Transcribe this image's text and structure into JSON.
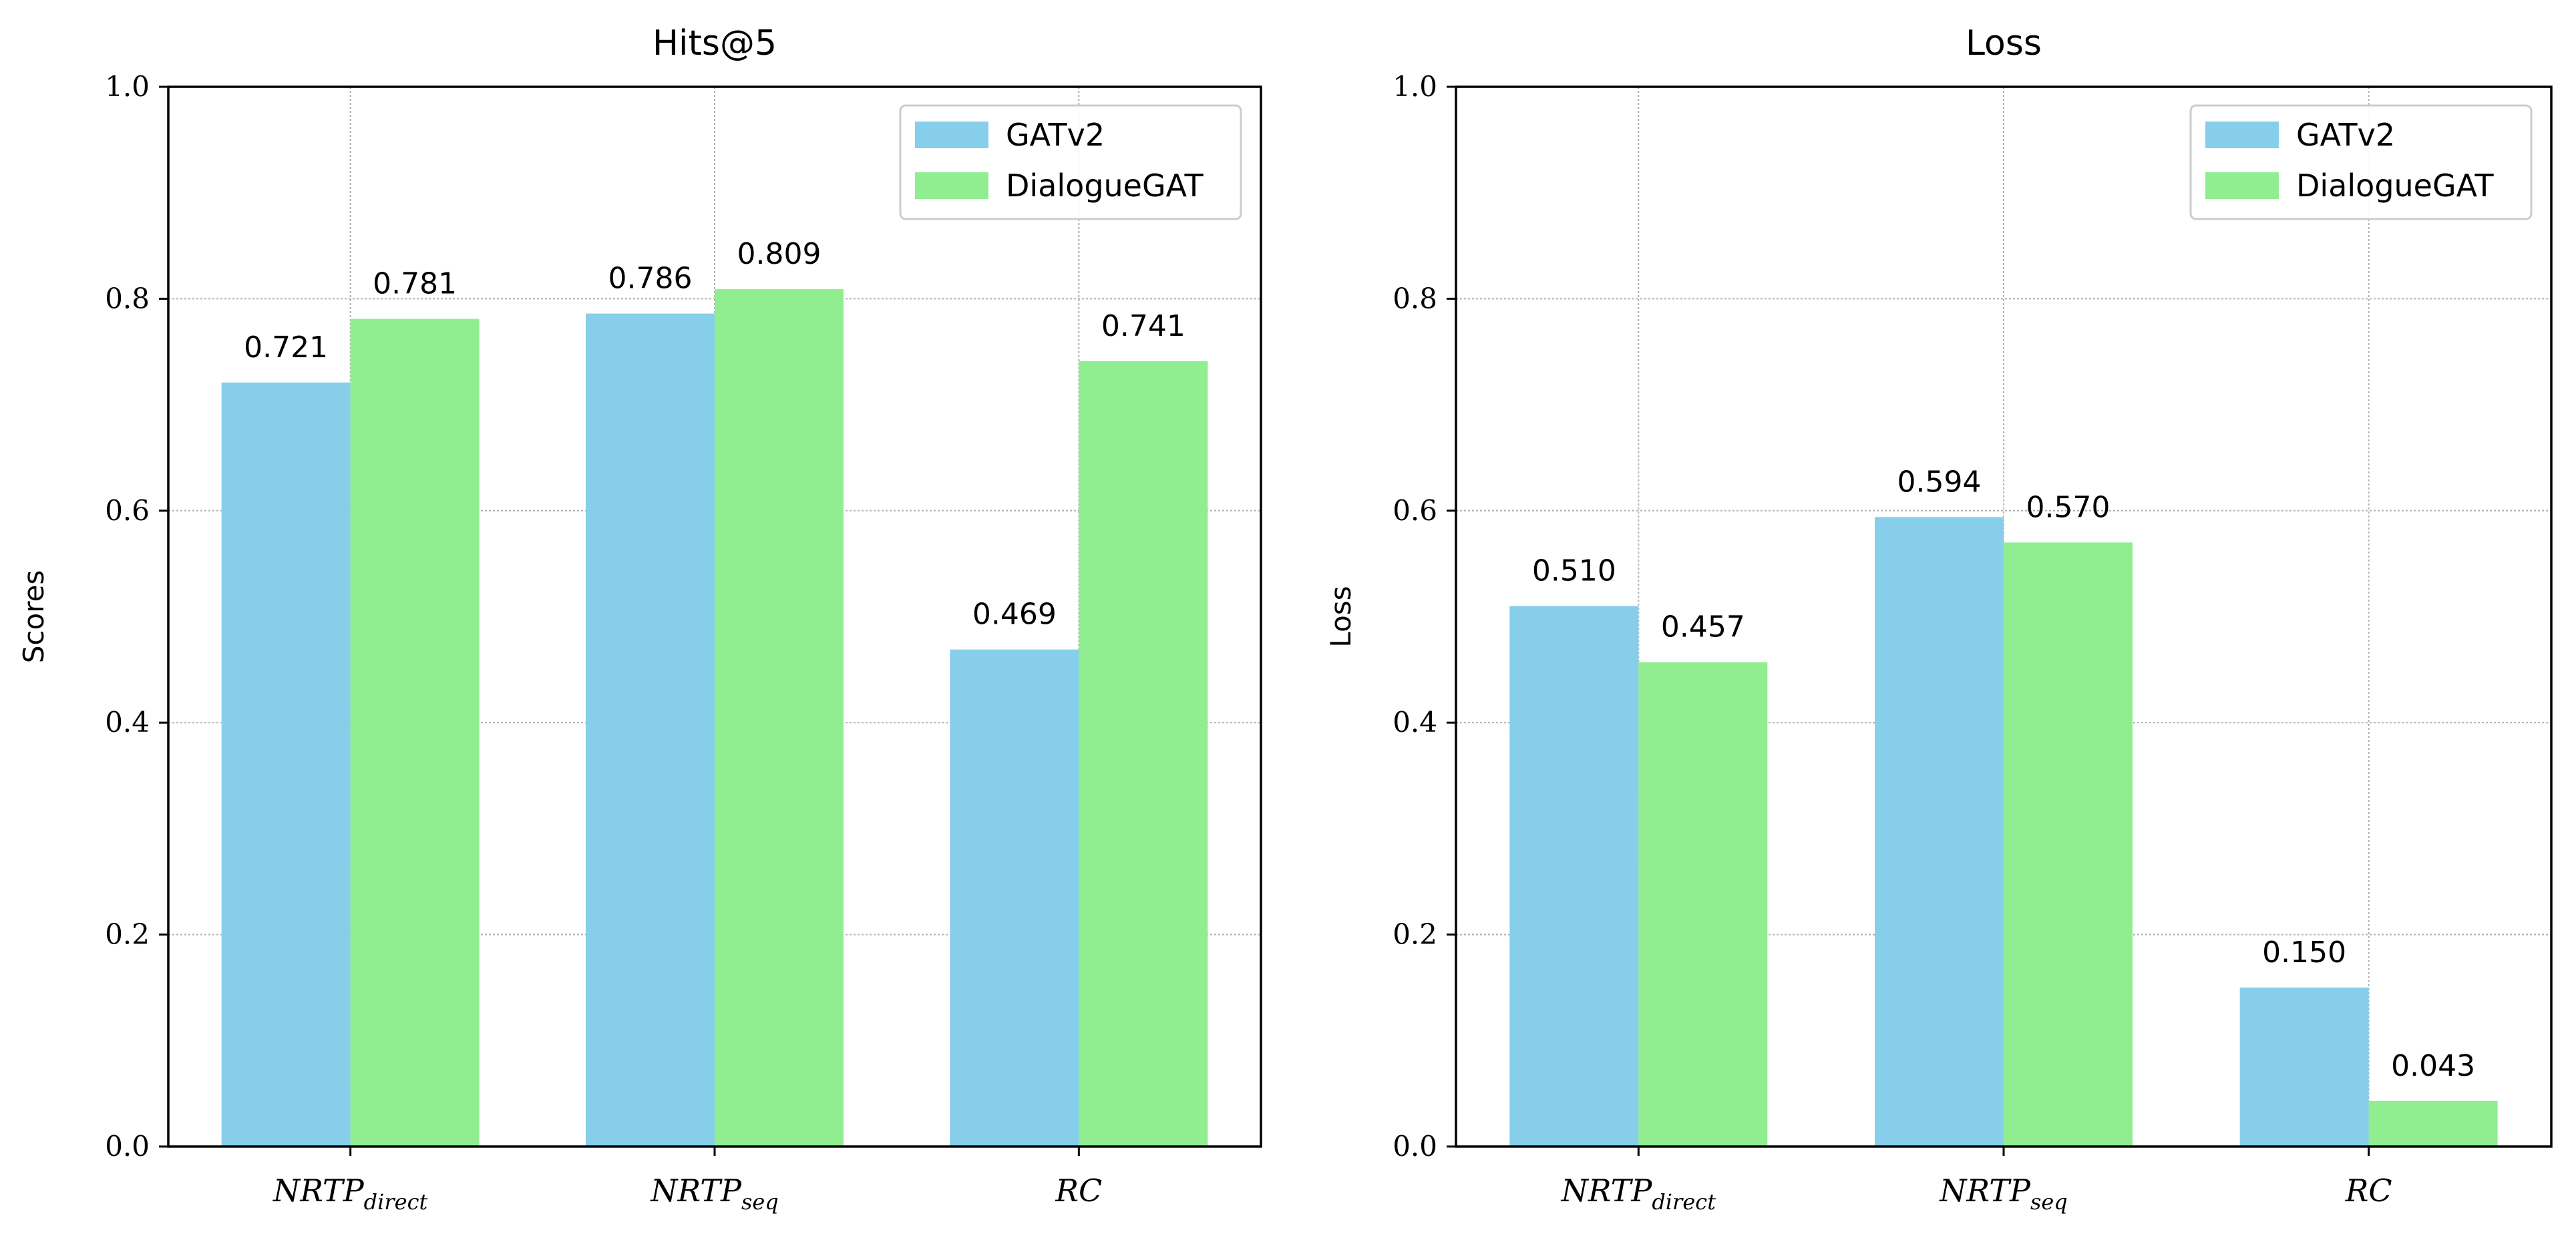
{
  "chart_data": [
    {
      "type": "bar",
      "title": "Hits@5",
      "ylabel": "Scores",
      "xlabel": "",
      "ylim": [
        0,
        1.0
      ],
      "yticks": [
        "0.0",
        "0.2",
        "0.4",
        "0.6",
        "0.8",
        "1.0"
      ],
      "grid": true,
      "legend_position": "top-right",
      "categories": [
        {
          "base": "NRTP",
          "sub": "direct"
        },
        {
          "base": "NRTP",
          "sub": "seq"
        },
        {
          "base": "RC",
          "sub": ""
        }
      ],
      "series": [
        {
          "name": "GATv2",
          "color": "#87CEEB",
          "values": [
            0.721,
            0.786,
            0.469
          ],
          "labels": [
            "0.721",
            "0.786",
            "0.469"
          ]
        },
        {
          "name": "DialogueGAT",
          "color": "#90EE90",
          "values": [
            0.781,
            0.809,
            0.741
          ],
          "labels": [
            "0.781",
            "0.809",
            "0.741"
          ]
        }
      ]
    },
    {
      "type": "bar",
      "title": "Loss",
      "ylabel": "Loss",
      "xlabel": "",
      "ylim": [
        0,
        1.0
      ],
      "yticks": [
        "0.0",
        "0.2",
        "0.4",
        "0.6",
        "0.8",
        "1.0"
      ],
      "grid": true,
      "legend_position": "top-right",
      "categories": [
        {
          "base": "NRTP",
          "sub": "direct"
        },
        {
          "base": "NRTP",
          "sub": "seq"
        },
        {
          "base": "RC",
          "sub": ""
        }
      ],
      "series": [
        {
          "name": "GATv2",
          "color": "#87CEEB",
          "values": [
            0.51,
            0.594,
            0.15
          ],
          "labels": [
            "0.510",
            "0.594",
            "0.150"
          ]
        },
        {
          "name": "DialogueGAT",
          "color": "#90EE90",
          "values": [
            0.457,
            0.57,
            0.043
          ],
          "labels": [
            "0.457",
            "0.570",
            "0.043"
          ]
        }
      ]
    }
  ]
}
